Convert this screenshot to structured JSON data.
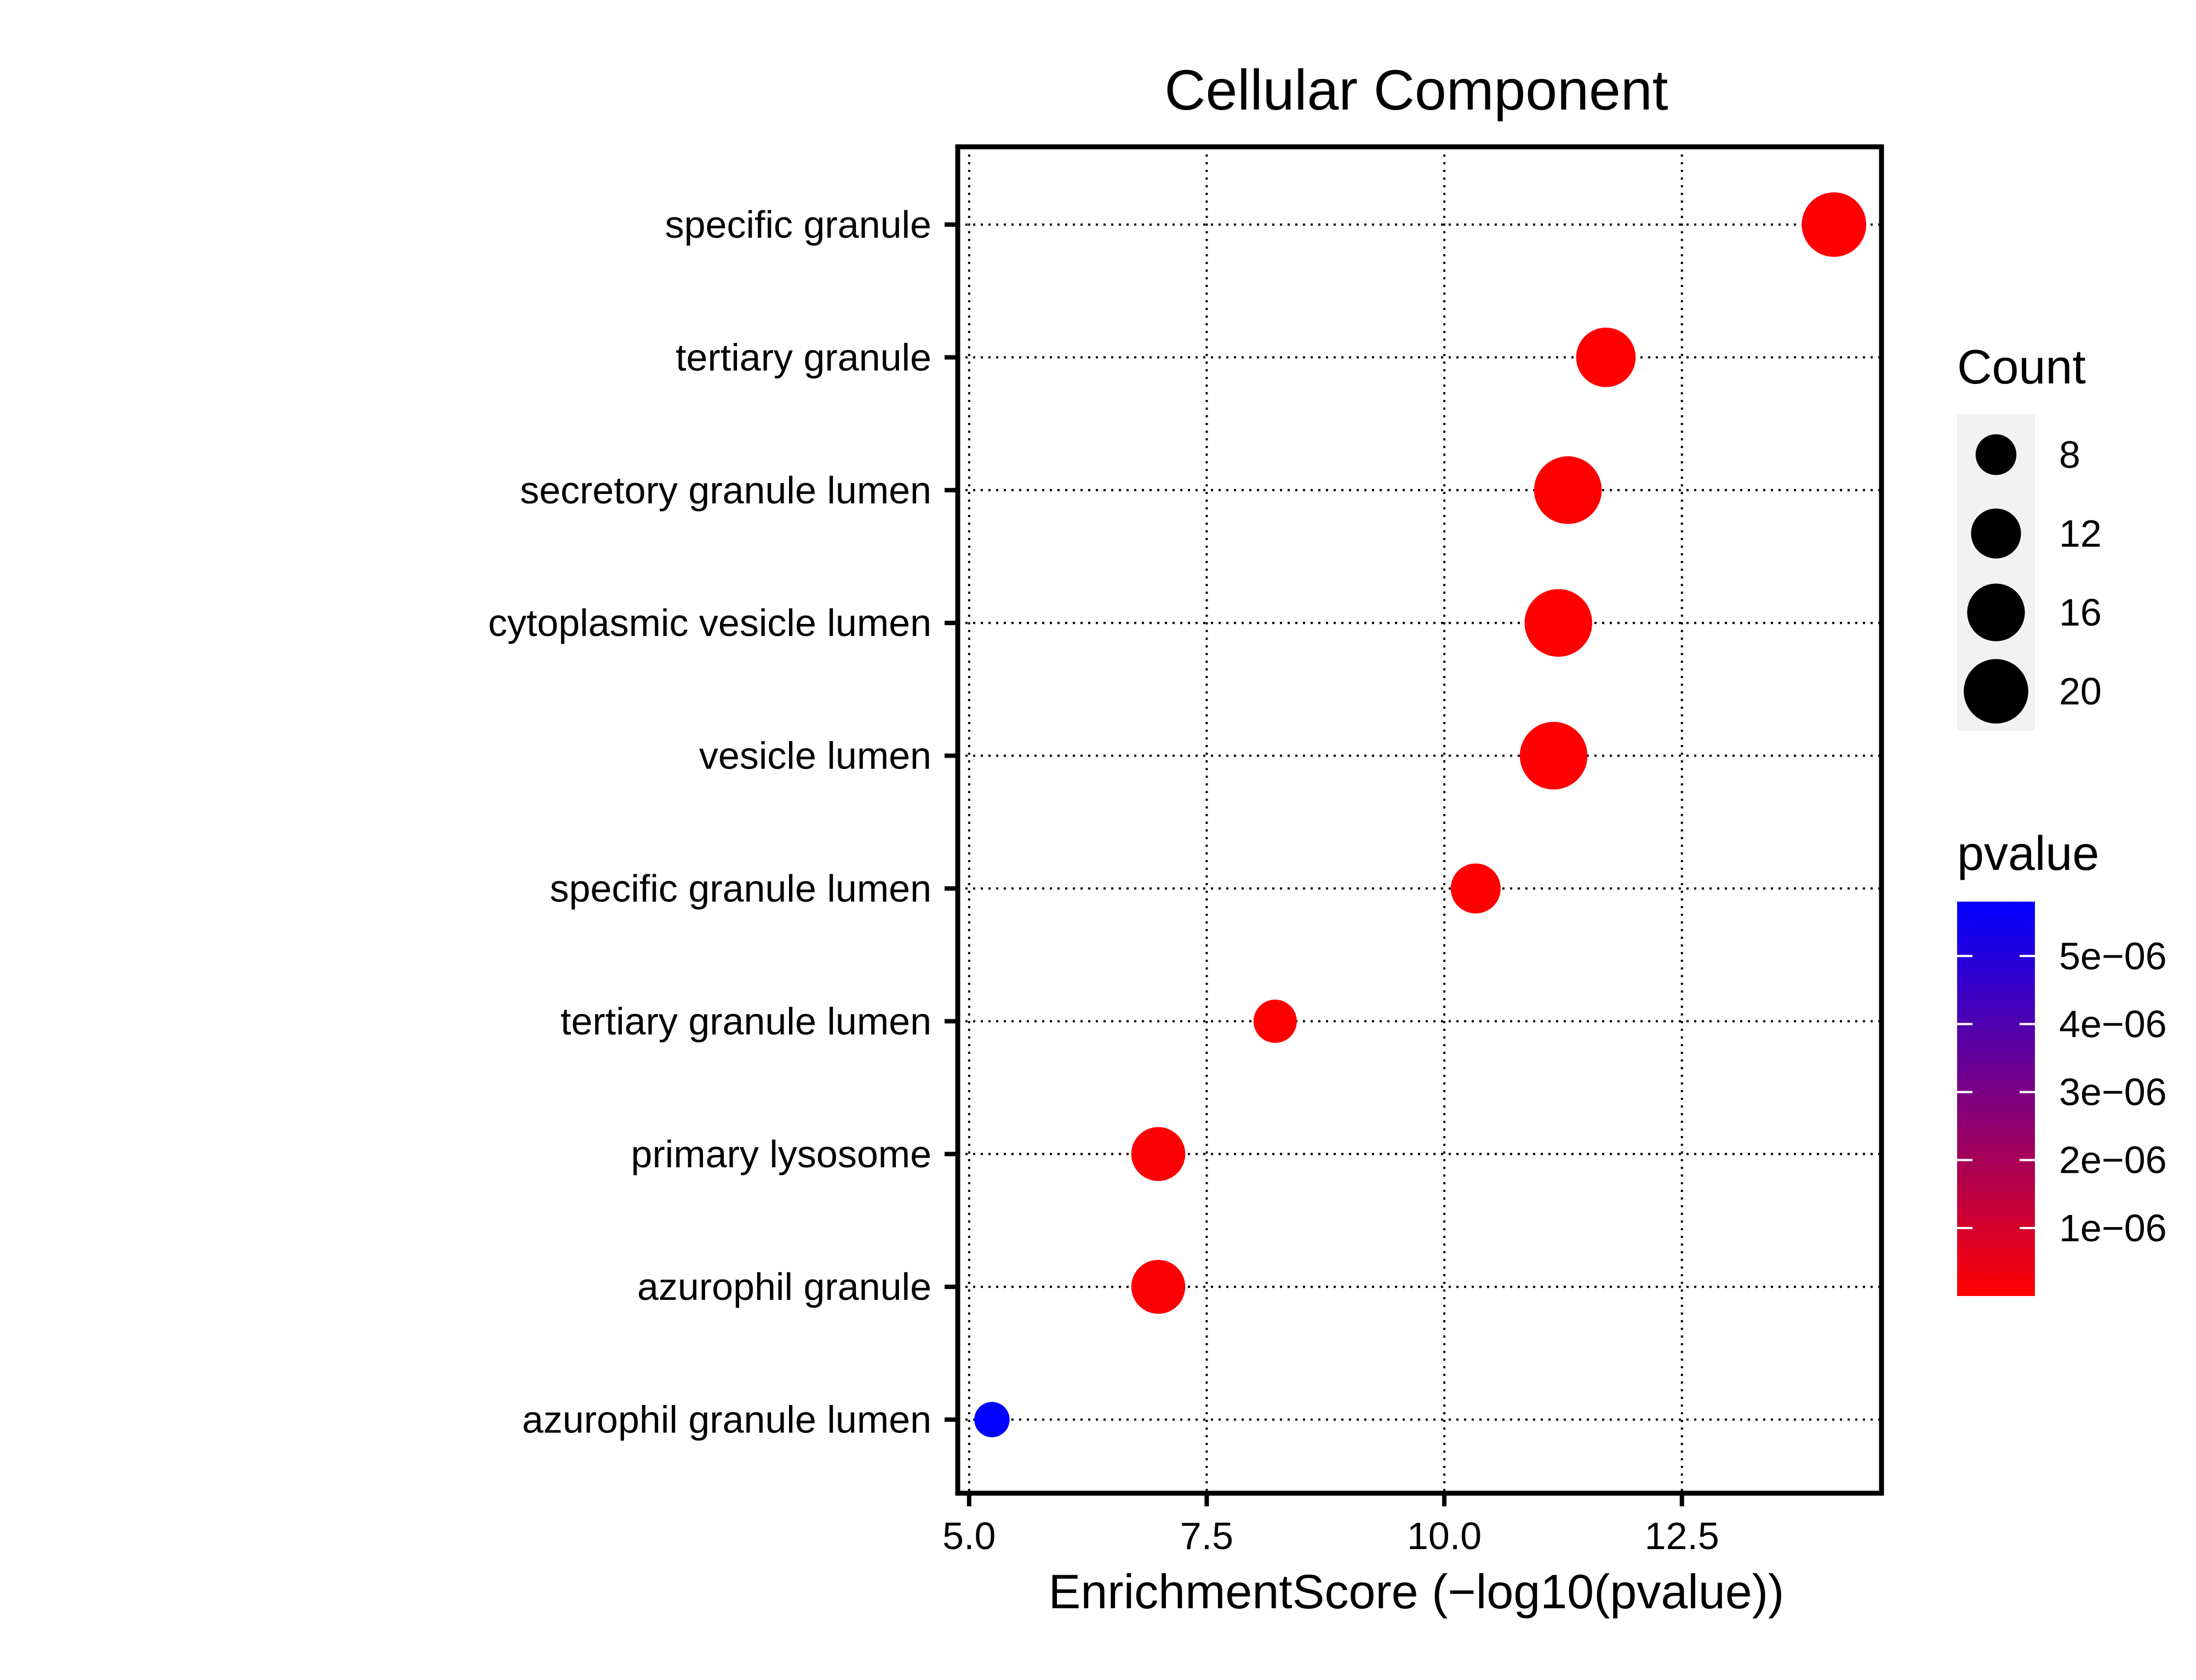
{
  "chart_data": {
    "type": "scatter",
    "title": "Cellular Component",
    "xlabel": "EnrichmentScore (−log10(pvalue))",
    "ylabel": "",
    "xlim": [
      4.88,
      14.6
    ],
    "x_ticks": [
      5.0,
      7.5,
      10.0,
      12.5
    ],
    "x_tick_labels": [
      "5.0",
      "7.5",
      "10.0",
      "12.5"
    ],
    "grid": true,
    "categories": [
      "specific granule",
      "tertiary granule",
      "secretory granule lumen",
      "cytoplasmic vesicle lumen",
      "vesicle lumen",
      "specific granule lumen",
      "tertiary granule lumen",
      "primary lysosome",
      "azurophil granule",
      "azurophil granule lumen"
    ],
    "points": [
      {
        "term": "specific granule",
        "x": 14.1,
        "count": 20,
        "pvalue": 8e-15
      },
      {
        "term": "tertiary granule",
        "x": 11.7,
        "count": 17,
        "pvalue": 2e-12
      },
      {
        "term": "secretory granule lumen",
        "x": 11.3,
        "count": 22,
        "pvalue": 5e-12
      },
      {
        "term": "cytoplasmic vesicle lumen",
        "x": 11.2,
        "count": 22,
        "pvalue": 6.3e-12
      },
      {
        "term": "vesicle lumen",
        "x": 11.15,
        "count": 22,
        "pvalue": 7e-12
      },
      {
        "term": "specific granule lumen",
        "x": 10.33,
        "count": 12,
        "pvalue": 4.7e-11
      },
      {
        "term": "tertiary granule lumen",
        "x": 8.22,
        "count": 9,
        "pvalue": 6e-09
      },
      {
        "term": "primary lysosome",
        "x": 6.99,
        "count": 14,
        "pvalue": 1e-07
      },
      {
        "term": "azurophil granule",
        "x": 6.99,
        "count": 14,
        "pvalue": 1e-07
      },
      {
        "term": "azurophil granule lumen",
        "x": 5.24,
        "count": 6,
        "pvalue": 5.8e-06
      }
    ],
    "legend": {
      "placement": "right",
      "size": {
        "title": "Count",
        "values": [
          8,
          12,
          16,
          20
        ],
        "labels": [
          "8",
          "12",
          "16",
          "20"
        ]
      },
      "color": {
        "title": "pvalue",
        "low_color": "#FF0000",
        "high_color": "#0000FF",
        "range": [
          0,
          5.8e-06
        ],
        "ticks": [
          5e-06,
          4e-06,
          3e-06,
          2e-06,
          1e-06
        ],
        "tick_labels": [
          "5e−06",
          "4e−06",
          "3e−06",
          "2e−06",
          "1e−06"
        ]
      }
    }
  }
}
